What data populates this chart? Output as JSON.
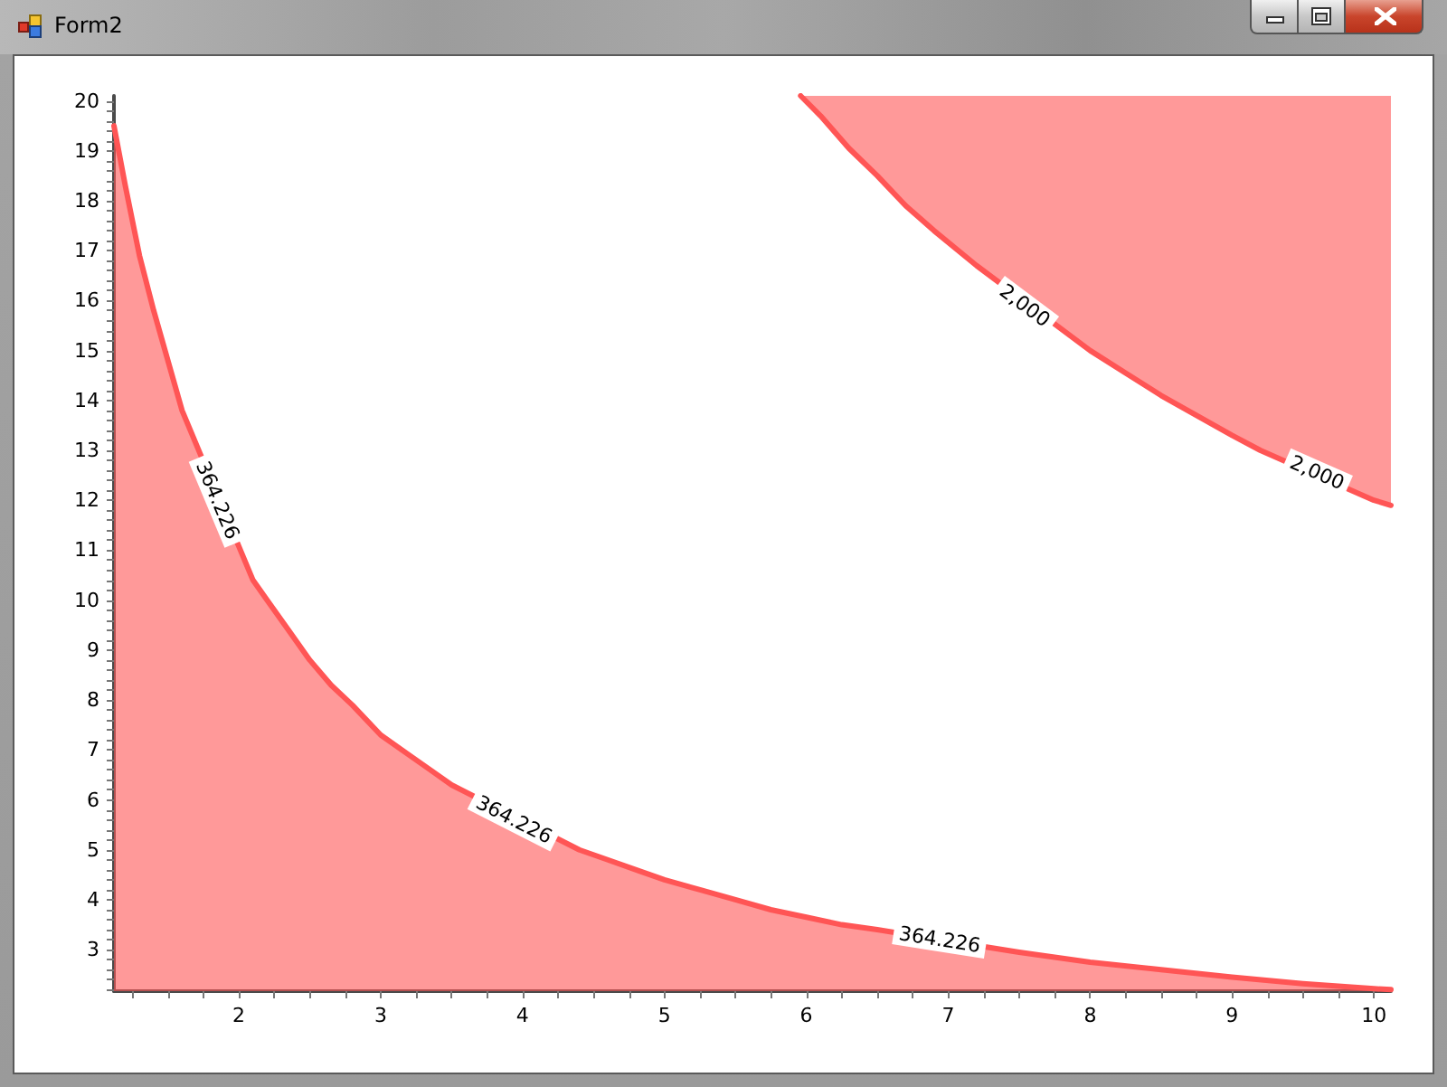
{
  "chart_data": {
    "type": "area",
    "title": "Form2",
    "xlim": [
      1.12,
      10.12
    ],
    "ylim": [
      2.17,
      20.1
    ],
    "xticks": [
      {
        "value": 1.25,
        "label": null
      },
      {
        "value": 1.5,
        "label": null
      },
      {
        "value": 1.75,
        "label": null
      },
      2,
      {
        "value": 2.25,
        "label": null
      },
      {
        "value": 2.5,
        "label": null
      },
      {
        "value": 2.75,
        "label": null
      },
      3,
      {
        "value": 3.25,
        "label": null
      },
      {
        "value": 3.5,
        "label": null
      },
      {
        "value": 3.75,
        "label": null
      },
      4,
      {
        "value": 4.25,
        "label": null
      },
      {
        "value": 4.5,
        "label": null
      },
      {
        "value": 4.75,
        "label": null
      },
      5,
      {
        "value": 5.25,
        "label": null
      },
      {
        "value": 5.5,
        "label": null
      },
      {
        "value": 5.75,
        "label": null
      },
      6,
      {
        "value": 6.25,
        "label": null
      },
      {
        "value": 6.5,
        "label": null
      },
      {
        "value": 6.75,
        "label": null
      },
      7,
      {
        "value": 7.25,
        "label": null
      },
      {
        "value": 7.5,
        "label": null
      },
      {
        "value": 7.75,
        "label": null
      },
      8,
      {
        "value": 8.25,
        "label": null
      },
      {
        "value": 8.5,
        "label": null
      },
      {
        "value": 8.75,
        "label": null
      },
      9,
      {
        "value": 9.25,
        "label": null
      },
      {
        "value": 9.5,
        "label": null
      },
      {
        "value": 9.75,
        "label": null
      },
      10
    ],
    "yticks": [
      {
        "value": 2.2,
        "label": null
      },
      {
        "value": 2.4,
        "label": null
      },
      {
        "value": 2.6,
        "label": null
      },
      {
        "value": 2.8,
        "label": null
      },
      3,
      {
        "value": 3.2,
        "label": null
      },
      {
        "value": 3.4,
        "label": null
      },
      {
        "value": 3.6,
        "label": null
      },
      {
        "value": 3.8,
        "label": null
      },
      4,
      {
        "value": 4.2,
        "label": null
      },
      {
        "value": 4.4,
        "label": null
      },
      {
        "value": 4.6,
        "label": null
      },
      {
        "value": 4.8,
        "label": null
      },
      5,
      {
        "value": 5.2,
        "label": null
      },
      {
        "value": 5.4,
        "label": null
      },
      {
        "value": 5.6,
        "label": null
      },
      {
        "value": 5.8,
        "label": null
      },
      6,
      {
        "value": 6.2,
        "label": null
      },
      {
        "value": 6.4,
        "label": null
      },
      {
        "value": 6.6,
        "label": null
      },
      {
        "value": 6.8,
        "label": null
      },
      7,
      {
        "value": 7.2,
        "label": null
      },
      {
        "value": 7.4,
        "label": null
      },
      {
        "value": 7.6,
        "label": null
      },
      {
        "value": 7.8,
        "label": null
      },
      8,
      {
        "value": 8.2,
        "label": null
      },
      {
        "value": 8.4,
        "label": null
      },
      {
        "value": 8.6,
        "label": null
      },
      {
        "value": 8.8,
        "label": null
      },
      9,
      {
        "value": 9.2,
        "label": null
      },
      {
        "value": 9.4,
        "label": null
      },
      {
        "value": 9.6,
        "label": null
      },
      {
        "value": 9.8,
        "label": null
      },
      10,
      {
        "value": 10.2,
        "label": null
      },
      {
        "value": 10.4,
        "label": null
      },
      {
        "value": 10.6,
        "label": null
      },
      {
        "value": 10.8,
        "label": null
      },
      11,
      {
        "value": 11.2,
        "label": null
      },
      {
        "value": 11.4,
        "label": null
      },
      {
        "value": 11.6,
        "label": null
      },
      {
        "value": 11.8,
        "label": null
      },
      12,
      {
        "value": 12.2,
        "label": null
      },
      {
        "value": 12.4,
        "label": null
      },
      {
        "value": 12.6,
        "label": null
      },
      {
        "value": 12.8,
        "label": null
      },
      13,
      {
        "value": 13.2,
        "label": null
      },
      {
        "value": 13.4,
        "label": null
      },
      {
        "value": 13.6,
        "label": null
      },
      {
        "value": 13.8,
        "label": null
      },
      14,
      {
        "value": 14.2,
        "label": null
      },
      {
        "value": 14.4,
        "label": null
      },
      {
        "value": 14.6,
        "label": null
      },
      {
        "value": 14.8,
        "label": null
      },
      15,
      {
        "value": 15.2,
        "label": null
      },
      {
        "value": 15.4,
        "label": null
      },
      {
        "value": 15.6,
        "label": null
      },
      {
        "value": 15.8,
        "label": null
      },
      16,
      {
        "value": 16.2,
        "label": null
      },
      {
        "value": 16.4,
        "label": null
      },
      {
        "value": 16.6,
        "label": null
      },
      {
        "value": 16.8,
        "label": null
      },
      17,
      {
        "value": 17.2,
        "label": null
      },
      {
        "value": 17.4,
        "label": null
      },
      {
        "value": 17.6,
        "label": null
      },
      {
        "value": 17.8,
        "label": null
      },
      18,
      {
        "value": 18.2,
        "label": null
      },
      {
        "value": 18.4,
        "label": null
      },
      {
        "value": 18.6,
        "label": null
      },
      {
        "value": 18.8,
        "label": null
      },
      19,
      {
        "value": 19.2,
        "label": null
      },
      {
        "value": 19.4,
        "label": null
      },
      {
        "value": 19.6,
        "label": null
      },
      {
        "value": 19.8,
        "label": null
      },
      20
    ],
    "series": [
      {
        "color": "#ff5555",
        "x": [
          1.12,
          1.2,
          1.3,
          1.4,
          1.5,
          1.6,
          2.1,
          2.2,
          2.35,
          2.5,
          2.65,
          2.8,
          3,
          3.2,
          3.35,
          3.5,
          4.4,
          4.6,
          4.8,
          5,
          5.25,
          5.5,
          5.75,
          6,
          6.25,
          6.5,
          7.5,
          7.75,
          8,
          8.5,
          9,
          9.5,
          10,
          10.12
        ],
        "values": [
          19.5,
          18.3,
          16.9,
          15.8,
          14.8,
          13.8,
          10.4,
          10.0,
          9.4,
          8.8,
          8.3,
          7.9,
          7.3,
          6.9,
          6.6,
          6.3,
          5.0,
          4.8,
          4.6,
          4.4,
          4.2,
          4.0,
          3.8,
          3.65,
          3.5,
          3.4,
          2.95,
          2.85,
          2.75,
          2.6,
          2.45,
          2.32,
          2.22,
          2.2
        ]
      },
      {
        "type": "line",
        "color": "#ff5555",
        "x": [
          5.96,
          6.1,
          6.3,
          6.5,
          6.7,
          6.9,
          7.2,
          8,
          8.25,
          8.5,
          8.75,
          9,
          9.2,
          10,
          10.12
        ],
        "values": [
          20.1,
          19.7,
          19.05,
          18.5,
          17.9,
          17.4,
          16.7,
          15.0,
          14.55,
          14.1,
          13.7,
          13.3,
          13.0,
          12.0,
          11.9
        ],
        "lower": [
          20.1,
          19.7,
          19.05,
          18.5,
          17.9,
          17.4,
          16.7,
          15.0,
          14.55,
          14.1,
          13.7,
          13.3,
          13.0,
          12.0,
          11.9
        ],
        "upper": [
          20.1,
          20.1,
          20.1,
          20.1,
          20.1,
          20.1,
          20.1,
          20.1,
          20.1,
          20.1,
          20.1,
          20.1,
          20.1,
          20.1,
          20.1
        ]
      }
    ],
    "annotations": [
      {
        "text": "364.226",
        "x": 1.85,
        "y": 12.0
      },
      {
        "text": "364.226",
        "x": 3.94,
        "y": 5.6
      },
      {
        "text": "364.226",
        "x": 6.94,
        "y": 3.2
      },
      {
        "text": "2,000",
        "x": 7.54,
        "y": 15.9
      },
      {
        "text": "2,000",
        "x": 9.6,
        "y": 12.55
      }
    ],
    "marker": "none",
    "line_style": "solid"
  }
}
